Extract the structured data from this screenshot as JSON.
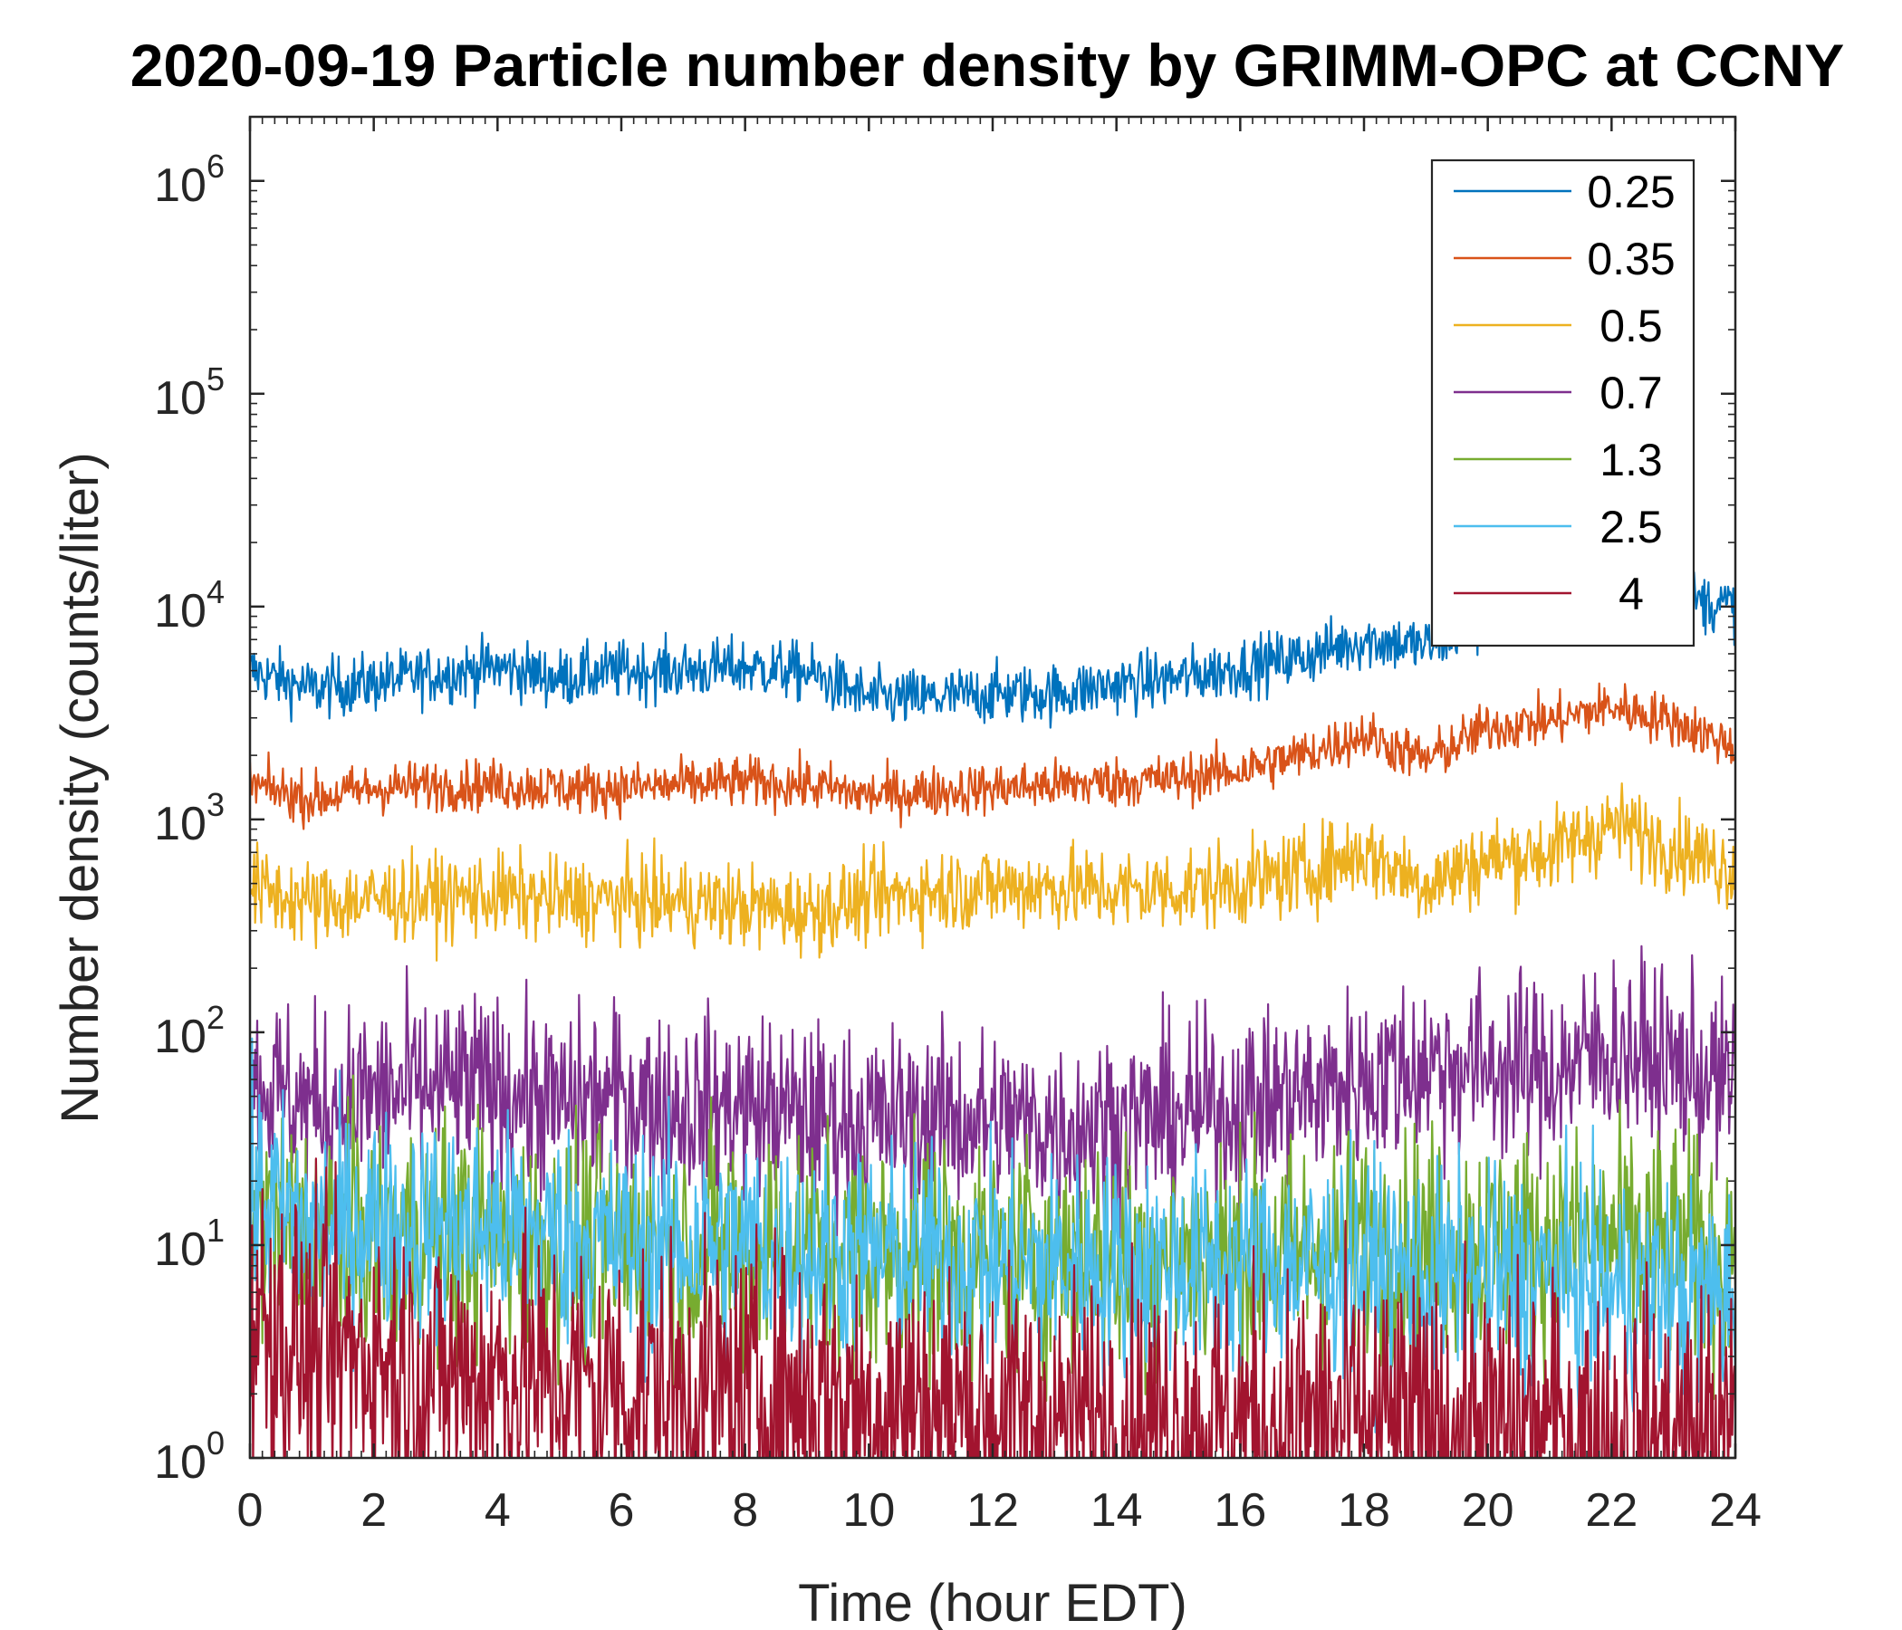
{
  "chart_data": {
    "type": "line",
    "title": "2020-09-19 Particle number density by GRIMM-OPC at CCNY",
    "xlabel": "Time (hour EDT)",
    "ylabel": "Number density (counts/liter)",
    "xlim": [
      0,
      24
    ],
    "ylim": [
      1,
      2000000
    ],
    "yscale": "log",
    "x_ticks": [
      0,
      2,
      4,
      6,
      8,
      10,
      12,
      14,
      16,
      18,
      20,
      22,
      24
    ],
    "x_tick_labels": [
      "0",
      "2",
      "4",
      "6",
      "8",
      "10",
      "12",
      "14",
      "16",
      "18",
      "20",
      "22",
      "24"
    ],
    "y_ticks": [
      1,
      10,
      100,
      1000,
      10000,
      100000,
      1000000
    ],
    "y_tick_exponents": [
      "0",
      "1",
      "2",
      "3",
      "4",
      "5",
      "6"
    ],
    "y_tick_base": "10",
    "grid": false,
    "legend_position": "top-right",
    "x": [
      0,
      1,
      2,
      3,
      4,
      5,
      6,
      7,
      8,
      9,
      10,
      11,
      12,
      13,
      14,
      15,
      16,
      17,
      18,
      19,
      20,
      21,
      22,
      23,
      24
    ],
    "series": [
      {
        "name": "0.25",
        "color": "#0072BD",
        "noise": 0.07,
        "values": [
          5000,
          4100,
          4400,
          4800,
          5200,
          4600,
          5000,
          5000,
          5200,
          4900,
          3700,
          3700,
          3900,
          3900,
          4300,
          4600,
          5200,
          5800,
          7000,
          6500,
          8500,
          10000,
          12000,
          11000,
          10000
        ]
      },
      {
        "name": "0.35",
        "color": "#D95319",
        "noise": 0.06,
        "values": [
          1450,
          1250,
          1400,
          1450,
          1450,
          1400,
          1400,
          1450,
          1500,
          1450,
          1300,
          1350,
          1400,
          1450,
          1500,
          1550,
          1700,
          2000,
          2500,
          1900,
          2700,
          2900,
          3400,
          2900,
          2200
        ]
      },
      {
        "name": "0.5",
        "color": "#EDB120",
        "noise": 0.1,
        "values": [
          480,
          400,
          420,
          430,
          440,
          420,
          420,
          410,
          390,
          370,
          420,
          460,
          480,
          480,
          460,
          470,
          500,
          560,
          700,
          500,
          650,
          700,
          950,
          750,
          580
        ]
      },
      {
        "name": "0.7",
        "color": "#7E2F8E",
        "noise": 0.22,
        "values": [
          60,
          45,
          50,
          55,
          55,
          45,
          50,
          45,
          45,
          40,
          38,
          40,
          38,
          36,
          38,
          40,
          45,
          50,
          60,
          70,
          70,
          65,
          85,
          70,
          55
        ]
      },
      {
        "name": "1.3",
        "color": "#77AC30",
        "noise": 0.28,
        "values": [
          14,
          12,
          11,
          11,
          11,
          10,
          10,
          10,
          10,
          10,
          9,
          9,
          9,
          9,
          9,
          9,
          9,
          9,
          10,
          10,
          10,
          10,
          10,
          10,
          9
        ]
      },
      {
        "name": "2.5",
        "color": "#4DBEEE",
        "noise": 0.26,
        "values": [
          18,
          12,
          13,
          12,
          12,
          11,
          10,
          10,
          10,
          9,
          9,
          9,
          8,
          8,
          8,
          8,
          8,
          8,
          8,
          7,
          7,
          7,
          6,
          6,
          6
        ]
      },
      {
        "name": "4",
        "color": "#A2142F",
        "noise": 0.35,
        "values": [
          5,
          3,
          3,
          2.5,
          2.5,
          2.2,
          2.2,
          2,
          2,
          2,
          1.8,
          1.8,
          1.6,
          1.5,
          1.5,
          1.5,
          1.5,
          1.5,
          1.5,
          1.4,
          1.4,
          1.4,
          1.3,
          1.3,
          1.3
        ]
      }
    ]
  }
}
